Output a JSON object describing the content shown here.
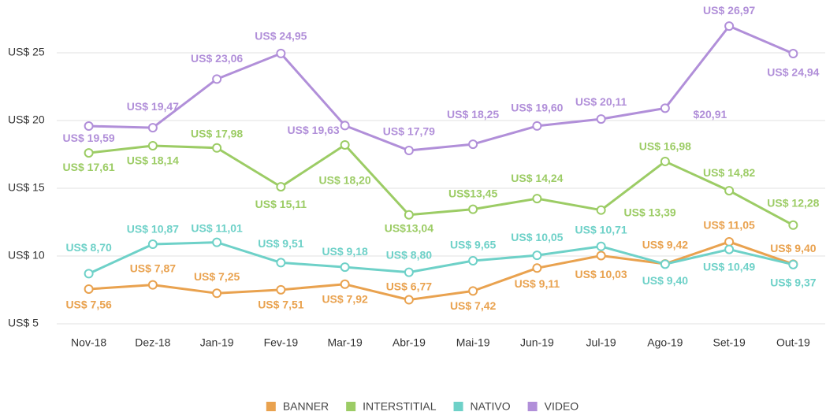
{
  "chart_data": {
    "type": "line",
    "categories": [
      "Nov-18",
      "Dez-18",
      "Jan-19",
      "Fev-19",
      "Mar-19",
      "Abr-19",
      "Mai-19",
      "Jun-19",
      "Jul-19",
      "Ago-19",
      "Set-19",
      "Out-19"
    ],
    "series": [
      {
        "name": "BANNER",
        "color": "#e9a24f",
        "values": [
          7.56,
          7.87,
          7.25,
          7.51,
          7.92,
          6.77,
          7.42,
          9.11,
          10.03,
          9.42,
          11.05,
          9.4
        ],
        "value_labels": [
          "US$ 7,56",
          "US$ 7,87",
          "US$ 7,25",
          "US$ 7,51",
          "US$ 7,92",
          "US$ 6,77",
          "US$ 7,42",
          "US$ 9,11",
          "US$ 10,03",
          "US$ 9,42",
          "US$ 11,05",
          "US$ 9,40"
        ]
      },
      {
        "name": "INTERSTITIAL",
        "color": "#9ccc65",
        "values": [
          17.61,
          18.14,
          17.98,
          15.11,
          18.2,
          13.04,
          13.45,
          14.24,
          13.39,
          16.98,
          14.82,
          12.28
        ],
        "value_labels": [
          "US$ 17,61",
          "US$ 18,14",
          "US$ 17,98",
          "US$ 15,11",
          "US$ 18,20",
          "US$13,04",
          "US$13,45",
          "US$ 14,24",
          "US$ 13,39",
          "US$ 16,98",
          "US$ 14,82",
          "US$ 12,28"
        ]
      },
      {
        "name": "NATIVO",
        "color": "#6ed1c8",
        "values": [
          8.7,
          10.87,
          11.01,
          9.51,
          9.18,
          8.8,
          9.65,
          10.05,
          10.71,
          9.4,
          10.49,
          9.37
        ],
        "value_labels": [
          "US$ 8,70",
          "US$ 10,87",
          "US$ 11,01",
          "US$ 9,51",
          "US$ 9,18",
          "US$ 8,80",
          "US$ 9,65",
          "US$ 10,05",
          "US$ 10,71",
          "US$ 9,40",
          "US$ 10,49",
          "US$ 9,37"
        ]
      },
      {
        "name": "VIDEO",
        "color": "#b18fd9",
        "values": [
          19.59,
          19.47,
          23.06,
          24.95,
          19.63,
          17.79,
          18.25,
          19.6,
          20.11,
          20.91,
          26.97,
          24.94
        ],
        "value_labels": [
          "US$ 19,59",
          "US$ 19,47",
          "US$ 23,06",
          "US$ 24,95",
          "US$ 19,63",
          "US$ 17,79",
          "US$ 18,25",
          "US$ 19,60",
          "US$ 20,11",
          "$20,91",
          "US$ 26,97",
          "US$ 24,94"
        ]
      }
    ],
    "ylim": [
      5,
      28
    ],
    "yticks": [
      {
        "value": 5,
        "label": "US$ 5"
      },
      {
        "value": 10,
        "label": "US$ 10"
      },
      {
        "value": 15,
        "label": "US$ 15"
      },
      {
        "value": 20,
        "label": "US$ 20"
      },
      {
        "value": 25,
        "label": "US$ 25"
      }
    ],
    "grid": true,
    "legend": "bottom"
  }
}
